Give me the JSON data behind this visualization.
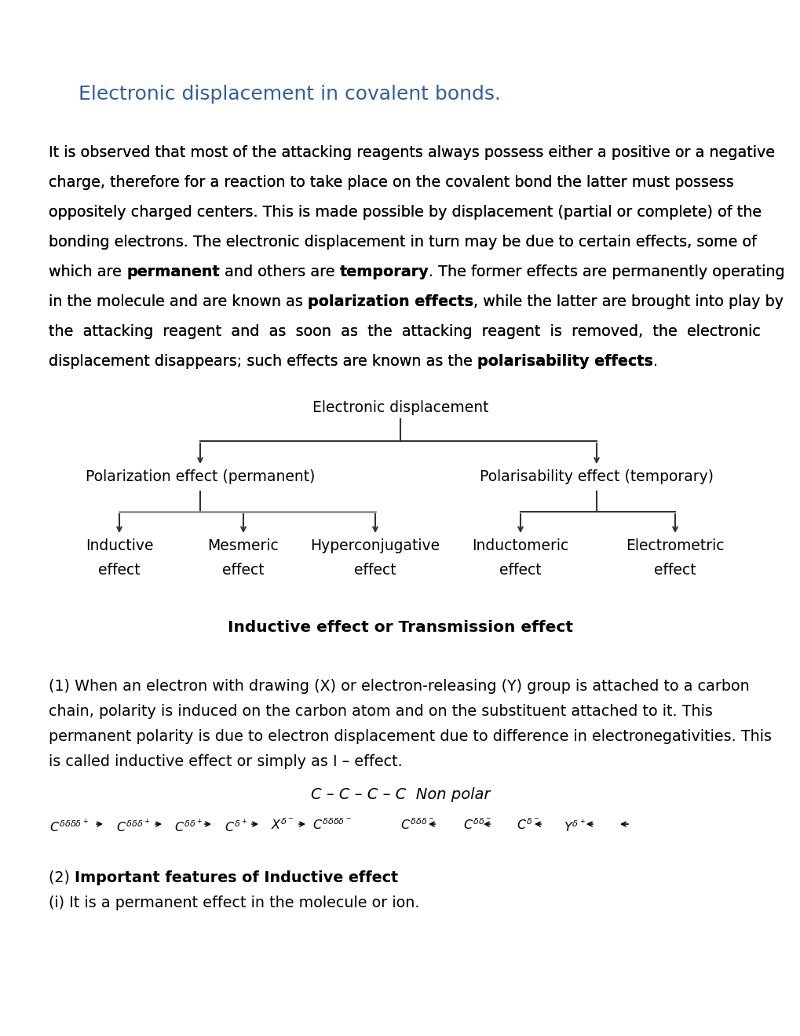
{
  "title": "Electronic displacement in covalent bonds.",
  "title_color": "#2e5f9e",
  "bg_color": "#ffffff",
  "body_lines": [
    [
      [
        "It is observed that most of the attacking reagents always possess either a positive or a negative",
        false
      ]
    ],
    [
      [
        "charge, therefore for a reaction to take place on the covalent bond the latter must possess",
        false
      ]
    ],
    [
      [
        "oppositely charged centers. This is made possible by displacement (partial or complete) of the",
        false
      ]
    ],
    [
      [
        "bonding electrons. The electronic displacement in turn may be due to certain effects, some of",
        false
      ]
    ],
    [
      [
        "which are ",
        false
      ],
      [
        "permanent",
        true
      ],
      [
        " and others are ",
        false
      ],
      [
        "temporary",
        true
      ],
      [
        ". The former effects are permanently operating",
        false
      ]
    ],
    [
      [
        "in the molecule and are known as ",
        false
      ],
      [
        "polarization effects",
        true
      ],
      [
        ", while the latter are brought into play by",
        false
      ]
    ],
    [
      [
        "the  attacking  reagent  and  as  soon  as  the  attacking  reagent  is  removed,  the  electronic",
        false
      ]
    ],
    [
      [
        "displacement disappears; such effects are known as the ",
        false
      ],
      [
        "polarisability effects",
        true
      ],
      [
        ".",
        false
      ]
    ]
  ],
  "diagram_title": "Electronic displacement",
  "left_branch": "Polarization effect (permanent)",
  "right_branch": "Polarisability effect (temporary)",
  "left_leaves": [
    "Inductive\neffect",
    "Mesmeric\neffect",
    "Hyperconjugative\neffect"
  ],
  "right_leaves": [
    "Inductomeric\neffect",
    "Electrometric\neffect"
  ],
  "section_title": "Inductive effect or Transmission effect",
  "para1_lines": [
    "(1) When an electron with drawing (X) or electron-releasing (Y) group is attached to a carbon",
    "chain, polarity is induced on the carbon atom and on the substituent attached to it. This",
    "permanent polarity is due to electron displacement due to difference in electronegativities. This",
    "is called inductive effect or simply as I – effect."
  ],
  "nonpolar_line": "C – C – C – C  Non polar",
  "section2_title_parts": [
    [
      "(2) ",
      false
    ],
    [
      "Important features of Inductive effect",
      true
    ]
  ],
  "point_i": "(i) It is a permanent effect in the molecule or ion.",
  "line_color": "#333333",
  "text_color": "#000000",
  "font_size_body": 13.8,
  "font_size_diagram": 13.5,
  "font_size_arrow": 11.5
}
